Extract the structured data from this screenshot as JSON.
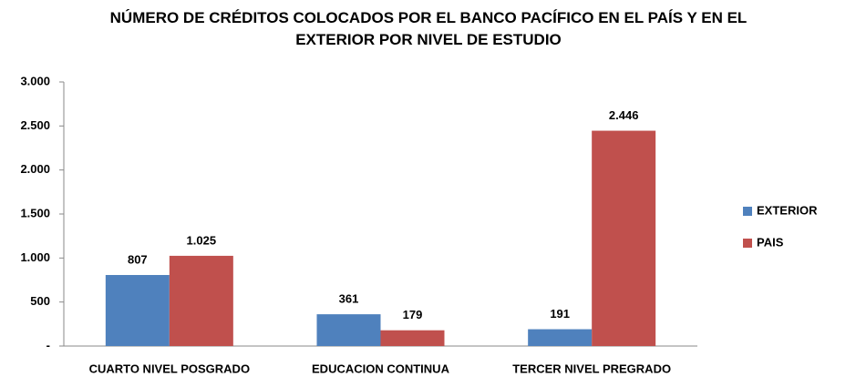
{
  "chart_data": {
    "type": "bar",
    "title": "NÚMERO DE CRÉDITOS COLOCADOS POR EL BANCO PACÍFICO EN EL PAÍS Y EN EL EXTERIOR POR NIVEL DE ESTUDIO",
    "categories": [
      "CUARTO NIVEL POSGRADO",
      "EDUCACION CONTINUA",
      "TERCER NIVEL PREGRADO"
    ],
    "series": [
      {
        "name": "EXTERIOR",
        "color": "#4f81bd",
        "values": [
          807,
          361,
          191
        ],
        "value_labels": [
          "807",
          "361",
          "191"
        ]
      },
      {
        "name": "PAIS",
        "color": "#c0504d",
        "values": [
          1025,
          179,
          2446
        ],
        "value_labels": [
          "1.025",
          "179",
          "2.446"
        ]
      }
    ],
    "ylim": [
      0,
      3000
    ],
    "yticks": [
      {
        "value": 0,
        "label": "-"
      },
      {
        "value": 500,
        "label": "500"
      },
      {
        "value": 1000,
        "label": "1.000"
      },
      {
        "value": 1500,
        "label": "1.500"
      },
      {
        "value": 2000,
        "label": "2.000"
      },
      {
        "value": 2500,
        "label": "2.500"
      },
      {
        "value": 3000,
        "label": "3.000"
      }
    ],
    "legend": "right"
  }
}
